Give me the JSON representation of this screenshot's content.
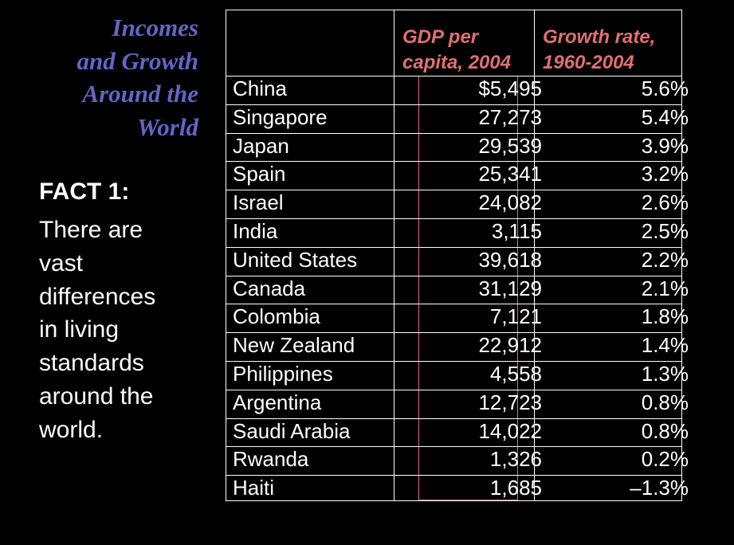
{
  "title": {
    "lines": [
      "Incomes",
      "and Growth",
      "Around the",
      "World"
    ],
    "color": "#6464c8"
  },
  "fact": {
    "heading": "FACT 1:",
    "lines": [
      "There are",
      "vast",
      "differences",
      "in living",
      "standards",
      "around the",
      "world."
    ]
  },
  "table": {
    "header_color": "#e07070",
    "gdp_header": [
      "GDP per",
      "capita, 2004"
    ],
    "growth_header": [
      "Growth rate,",
      "1960-2004"
    ],
    "rows": [
      {
        "country": "China",
        "gdp": "$5,495",
        "growth": "5.6%"
      },
      {
        "country": "Singapore",
        "gdp": "27,273",
        "growth": "5.4%"
      },
      {
        "country": "Japan",
        "gdp": "29,539",
        "growth": "3.9%"
      },
      {
        "country": "Spain",
        "gdp": "25,341",
        "growth": "3.2%"
      },
      {
        "country": "Israel",
        "gdp": "24,082",
        "growth": "2.6%"
      },
      {
        "country": "India",
        "gdp": "3,115",
        "growth": "2.5%"
      },
      {
        "country": "United States",
        "gdp": "39,618",
        "growth": "2.2%"
      },
      {
        "country": "Canada",
        "gdp": "31,129",
        "growth": "2.1%"
      },
      {
        "country": "Colombia",
        "gdp": "7,121",
        "growth": "1.8%"
      },
      {
        "country": "New Zealand",
        "gdp": "22,912",
        "growth": "1.4%"
      },
      {
        "country": "Philippines",
        "gdp": "4,558",
        "growth": "1.3%"
      },
      {
        "country": "Argentina",
        "gdp": "12,723",
        "growth": "0.8%"
      },
      {
        "country": "Saudi Arabia",
        "gdp": "14,022",
        "growth": "0.8%"
      },
      {
        "country": "Rwanda",
        "gdp": "1,326",
        "growth": "0.2%"
      },
      {
        "country": "Haiti",
        "gdp": "1,685",
        "growth": "–1.3%"
      }
    ]
  }
}
